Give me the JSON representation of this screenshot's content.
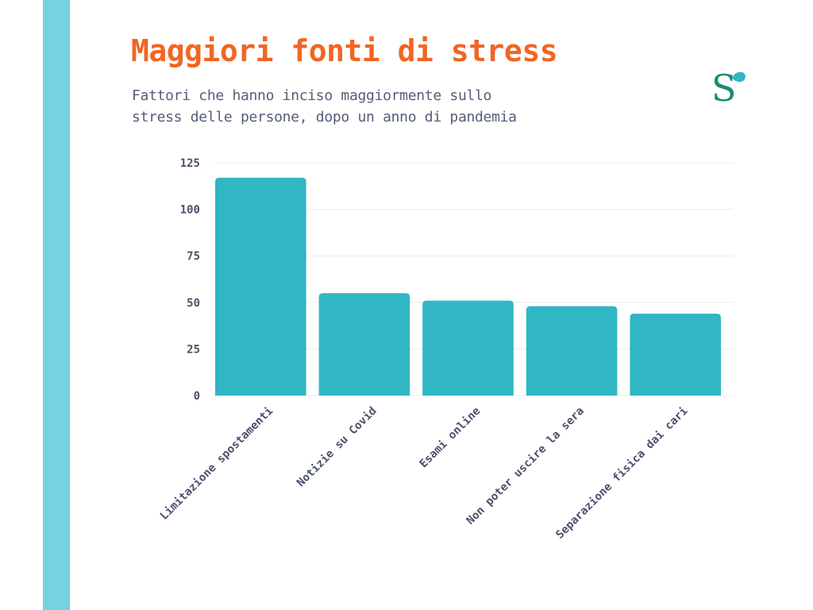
{
  "colors": {
    "accent": "#f26522",
    "stripe": "#74d3de",
    "bar": "#31b6c4",
    "logo": "#1e8a74"
  },
  "logo": {
    "icon": "s-leaf-logo-icon",
    "letter": "S"
  },
  "chart_data": {
    "type": "bar",
    "title": "Maggiori fonti di stress",
    "subtitle": [
      "Fattori che hanno inciso maggiormente sullo",
      "stress delle persone, dopo un anno di pandemia"
    ],
    "categories": [
      "Limitazione spostamenti",
      "Notizie su Covid",
      "Esami online",
      "Non poter uscire la sera",
      "Separazione fisica dai cari"
    ],
    "values": [
      117,
      55,
      51,
      48,
      44
    ],
    "ylim": [
      0,
      125
    ],
    "yticks": [
      0,
      25,
      50,
      75,
      100,
      125
    ],
    "grid": true,
    "legend": "none"
  }
}
